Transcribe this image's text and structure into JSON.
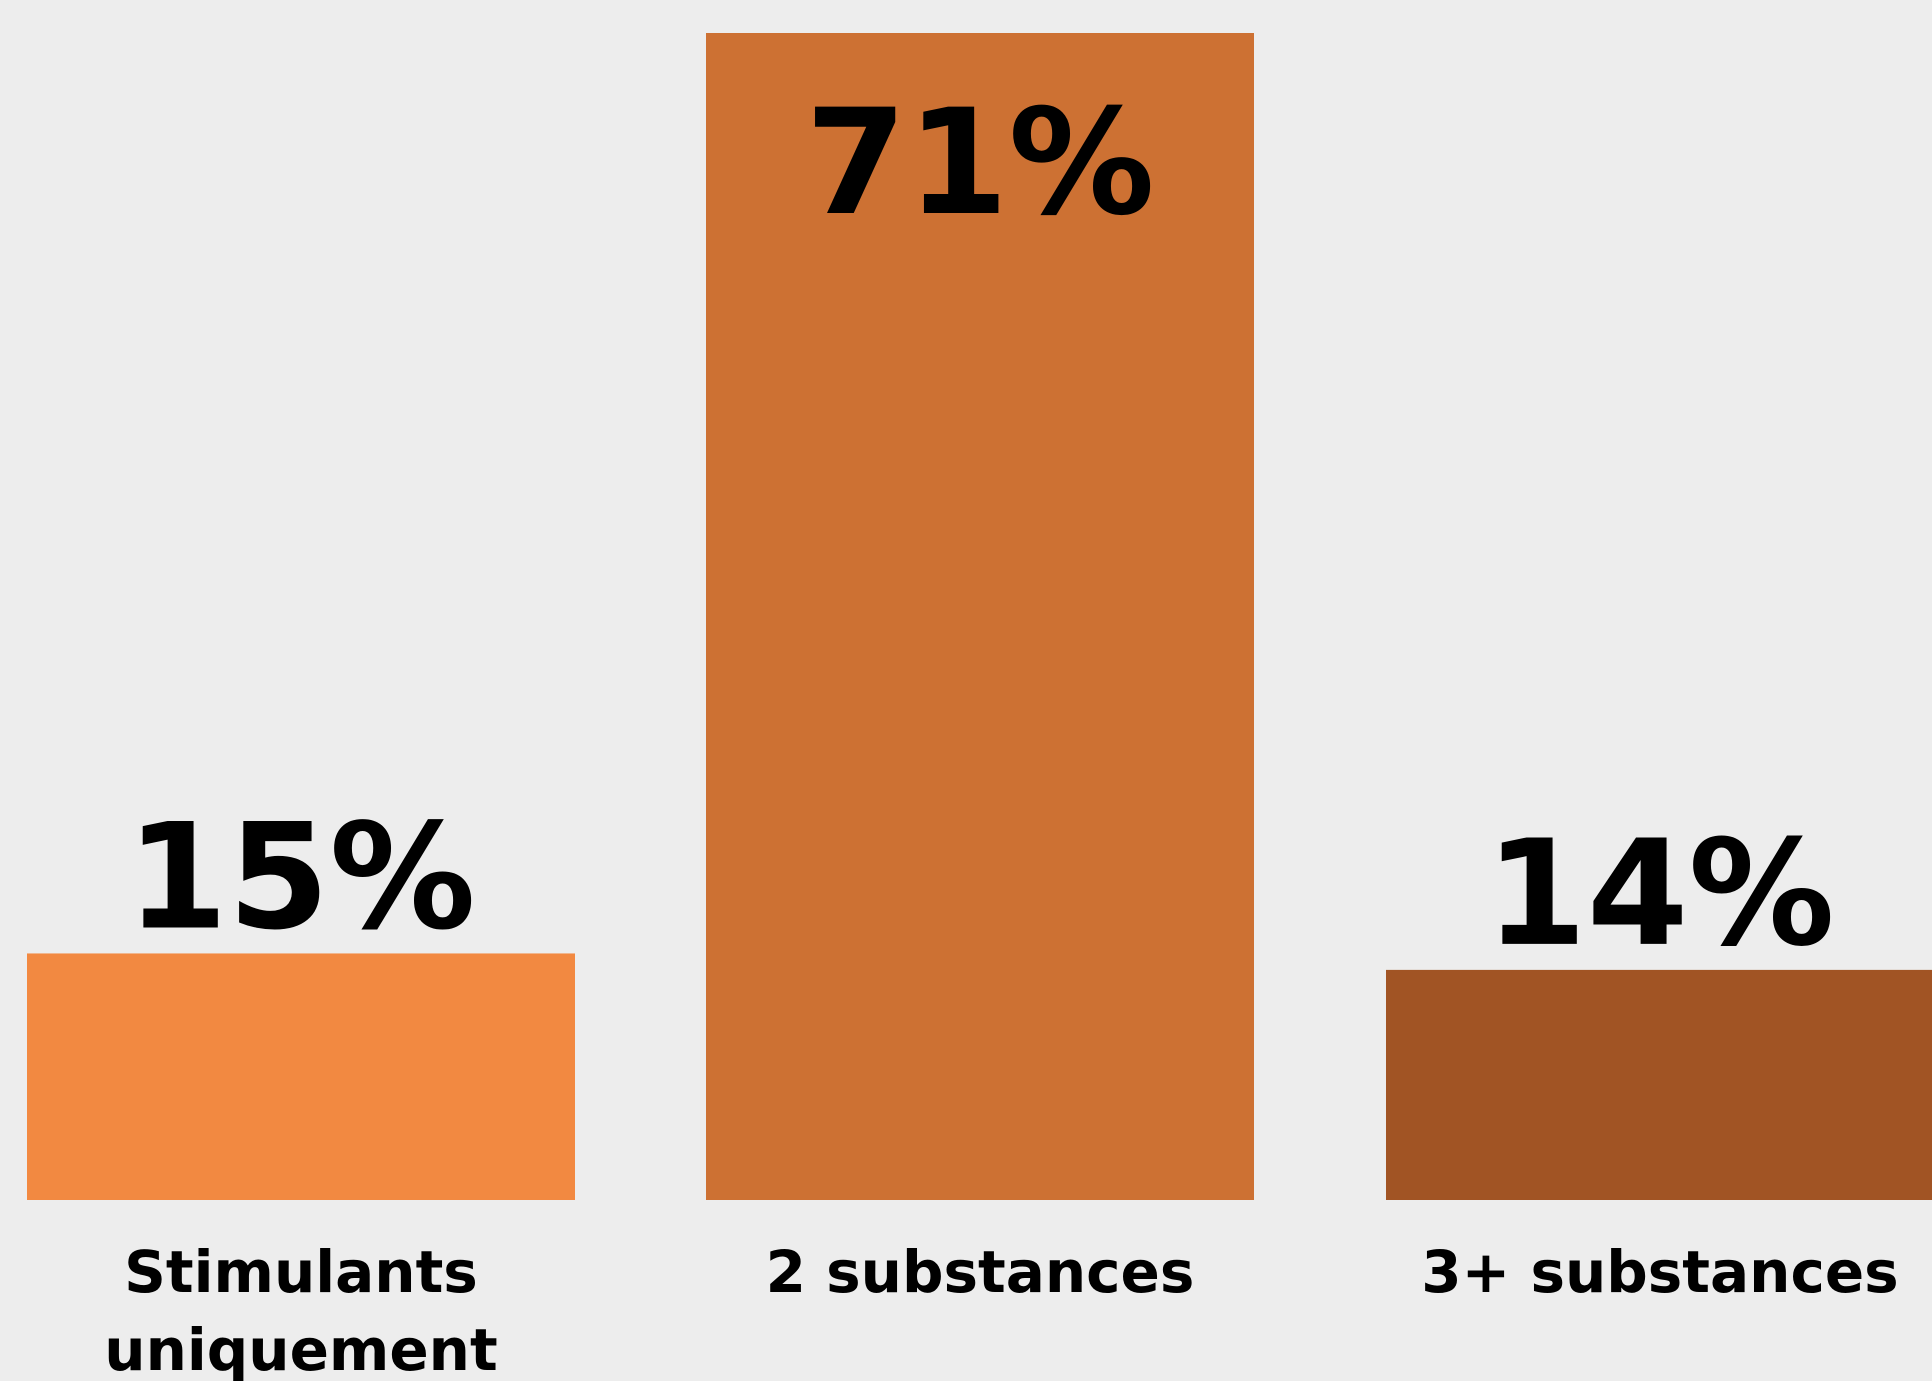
{
  "chart_data": {
    "type": "bar",
    "categories": [
      [
        "Stimulants",
        "uniquement"
      ],
      [
        "2 substances"
      ],
      [
        "3+ substances"
      ]
    ],
    "values": [
      15,
      71,
      14
    ],
    "value_labels": [
      "15%",
      "71%",
      "14%"
    ],
    "ylim": [
      0,
      71
    ],
    "colors": [
      "#f28941",
      "#cd7133",
      "#a15424"
    ],
    "background": "#ededed",
    "title": "",
    "xlabel": "",
    "ylabel": "",
    "grid": false,
    "legend": "none"
  }
}
